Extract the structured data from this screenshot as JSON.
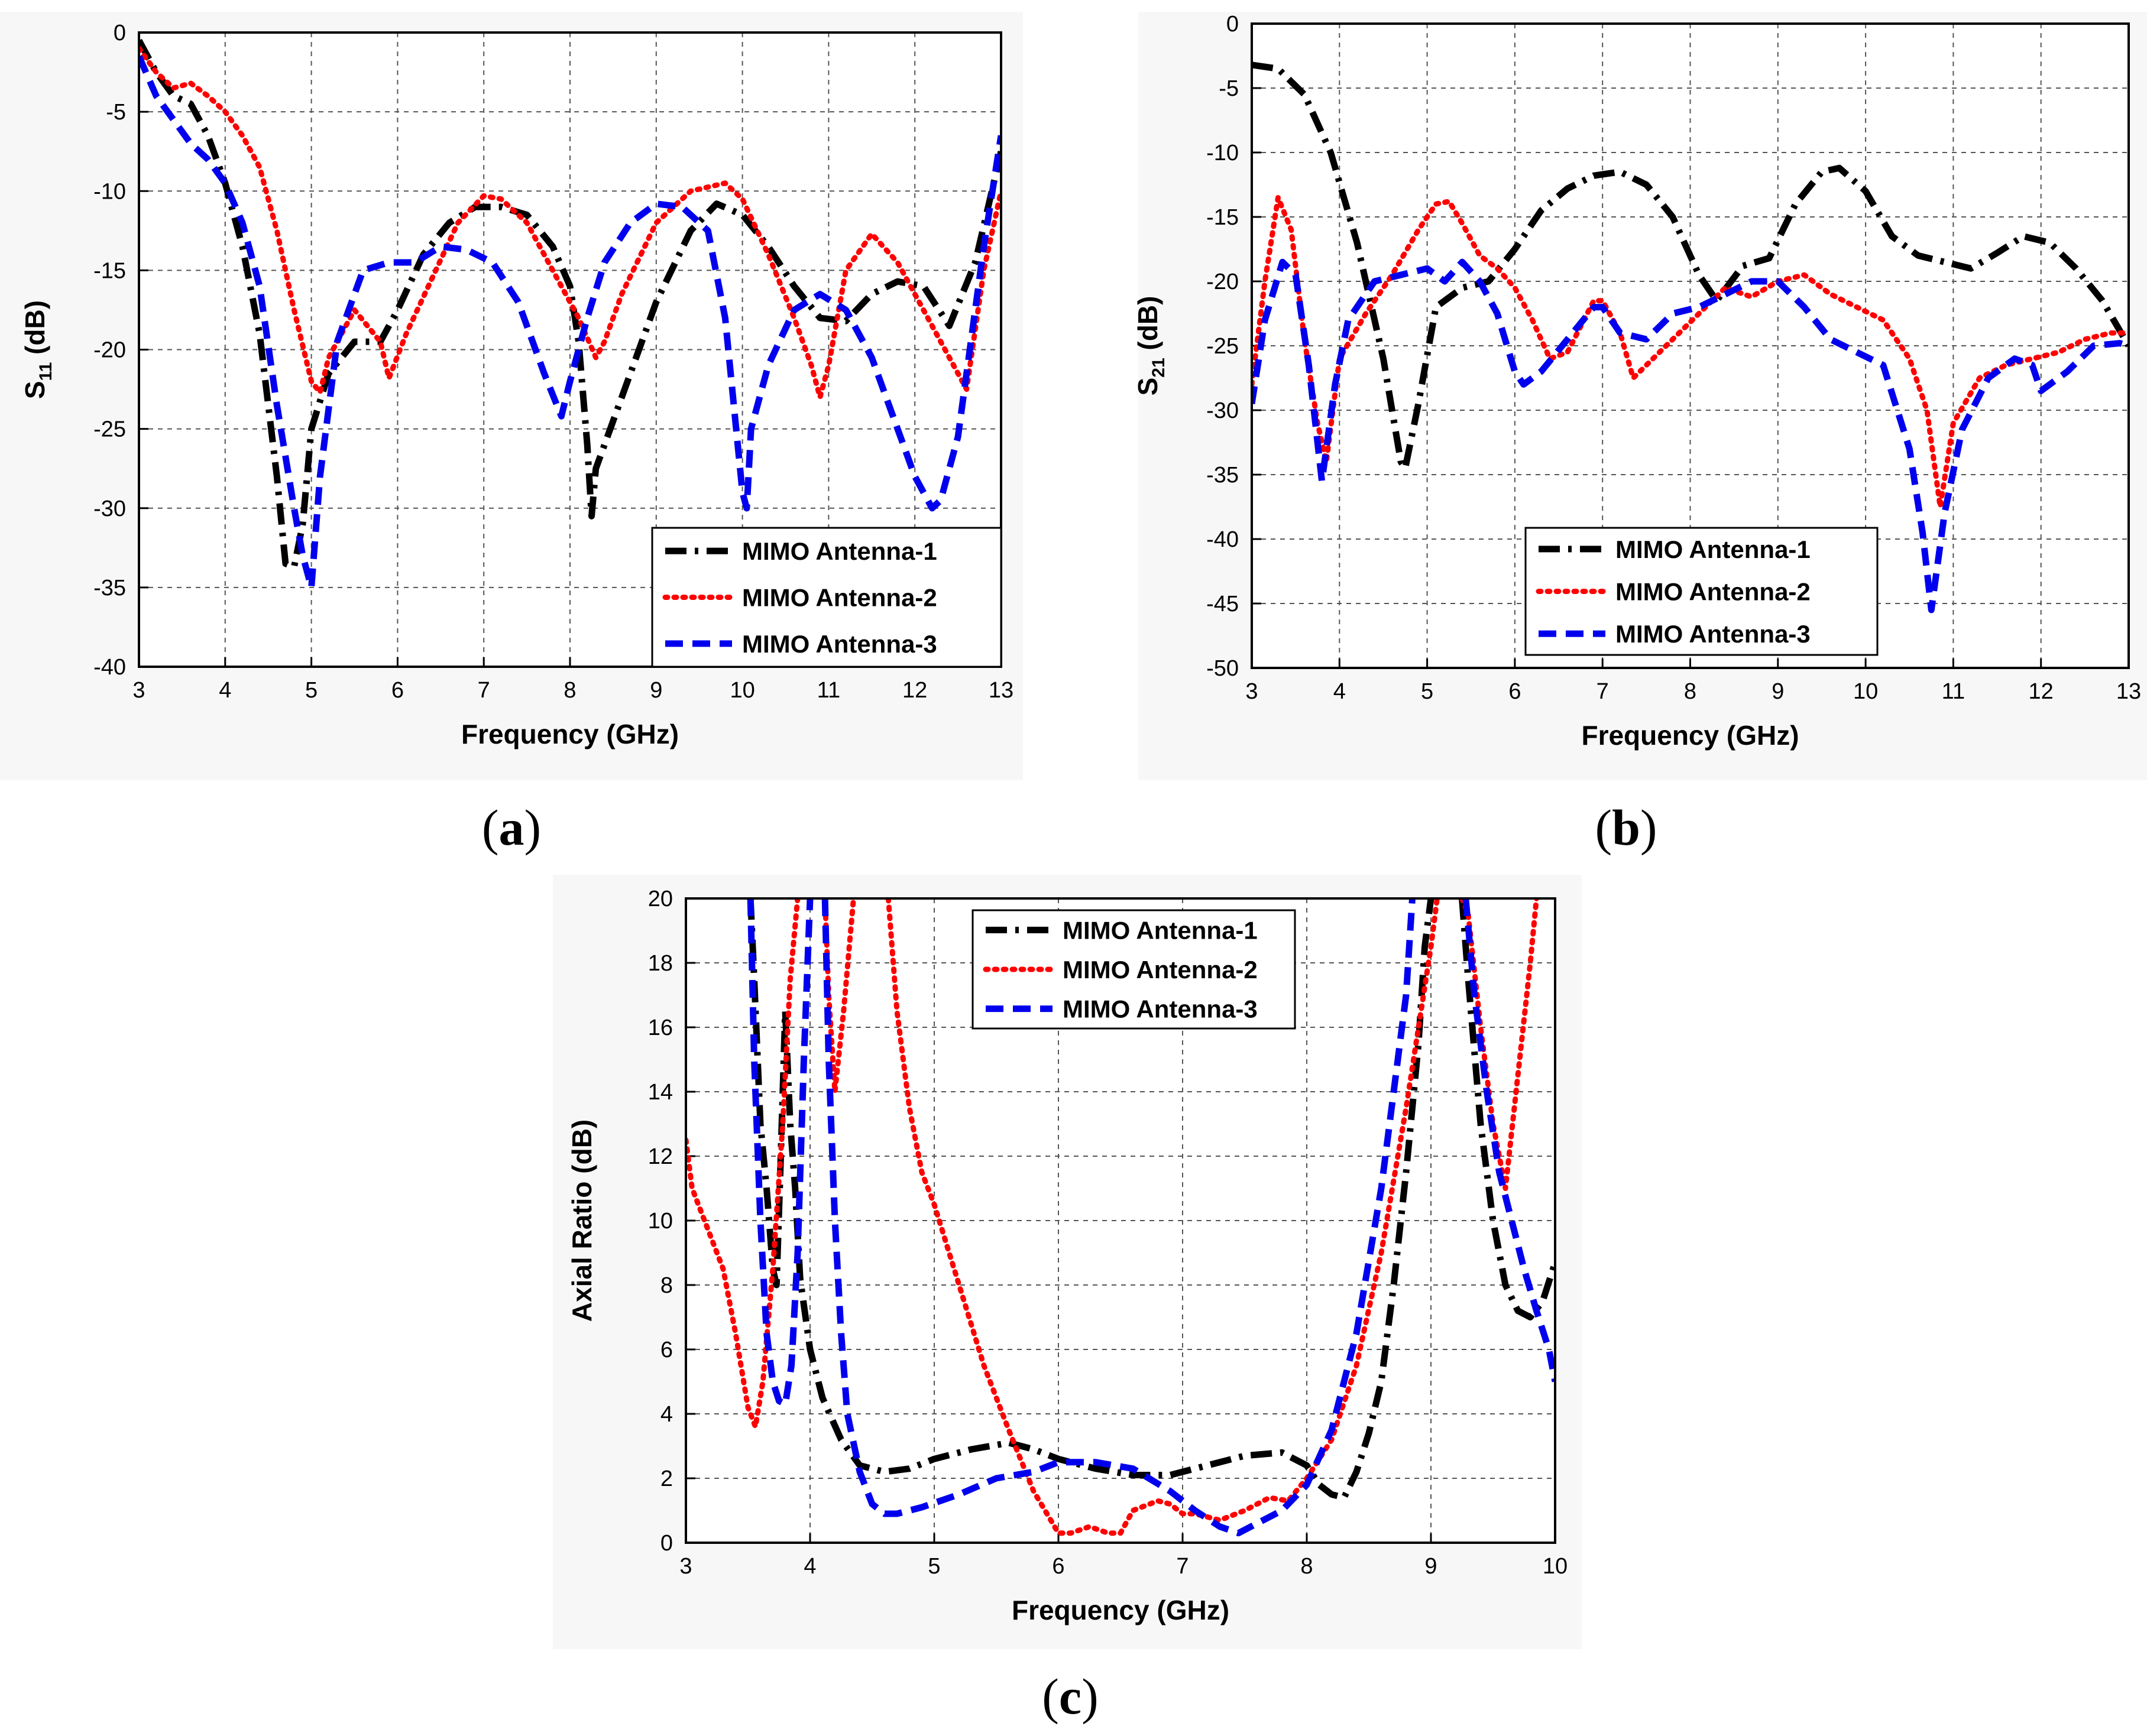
{
  "captions": {
    "a": "a",
    "b": "b",
    "c": "c"
  },
  "colors": {
    "antenna1": "#000000",
    "antenna2": "#ff0000",
    "antenna3": "#0000ee",
    "grid": "#555555"
  },
  "chart_data": [
    {
      "id": "a",
      "type": "line",
      "xlabel": "Frequency (GHz)",
      "ylabel_main": "S",
      "ylabel_sub": "11",
      "ylabel_unit": " (dB)",
      "xlim": [
        3,
        13
      ],
      "ylim": [
        -40,
        0
      ],
      "xticks": [
        3,
        4,
        5,
        6,
        7,
        8,
        9,
        10,
        11,
        12,
        13
      ],
      "yticks": [
        0,
        -5,
        -10,
        -15,
        -20,
        -25,
        -30,
        -35,
        -40
      ],
      "legend_position": "bottom-right",
      "series": [
        {
          "name": "MIMO Antenna-1",
          "style": "dashdot",
          "x": [
            3,
            3.2,
            3.4,
            3.6,
            3.8,
            4.0,
            4.2,
            4.4,
            4.6,
            4.7,
            4.8,
            4.9,
            5.0,
            5.2,
            5.5,
            5.8,
            6.0,
            6.3,
            6.6,
            6.9,
            7.2,
            7.5,
            7.8,
            8.0,
            8.1,
            8.2,
            8.25,
            8.3,
            8.6,
            9.0,
            9.4,
            9.7,
            10.0,
            10.3,
            10.6,
            10.9,
            11.2,
            11.5,
            11.8,
            12.1,
            12.4,
            12.7,
            13.0
          ],
          "y": [
            -0.5,
            -2.5,
            -4.0,
            -4.5,
            -6.5,
            -9.5,
            -13.5,
            -19,
            -28,
            -33.5,
            -33.7,
            -31,
            -25,
            -21.5,
            -19.5,
            -19.5,
            -17.5,
            -14,
            -12,
            -11,
            -11,
            -11.5,
            -13.5,
            -16,
            -19.5,
            -26,
            -30.5,
            -27.5,
            -23,
            -17,
            -12.5,
            -10.8,
            -11.5,
            -13.5,
            -16,
            -18,
            -18.2,
            -16.5,
            -15.7,
            -16,
            -18.5,
            -14.5,
            -7.5
          ]
        },
        {
          "name": "MIMO Antenna-2",
          "style": "dotted",
          "x": [
            3,
            3.2,
            3.4,
            3.6,
            3.8,
            4.0,
            4.2,
            4.4,
            4.6,
            4.8,
            5.0,
            5.1,
            5.2,
            5.5,
            5.8,
            5.9,
            6.1,
            6.4,
            6.7,
            7.0,
            7.2,
            7.5,
            7.8,
            8.1,
            8.3,
            8.4,
            8.6,
            9.0,
            9.4,
            9.8,
            10.0,
            10.3,
            10.6,
            10.8,
            10.9,
            11.0,
            11.2,
            11.5,
            11.8,
            12.1,
            12.4,
            12.6,
            12.8,
            13.0
          ],
          "y": [
            -1.0,
            -2.5,
            -3.5,
            -3.2,
            -4.0,
            -5.0,
            -6.5,
            -8.5,
            -12.5,
            -17.5,
            -22,
            -22.7,
            -20.5,
            -17.5,
            -19.5,
            -21.8,
            -19,
            -15.5,
            -12,
            -10.3,
            -10.5,
            -12,
            -15,
            -18,
            -20.5,
            -19.5,
            -16.5,
            -12,
            -10,
            -9.5,
            -10.5,
            -14,
            -18,
            -21,
            -23,
            -21,
            -15,
            -12.7,
            -14.5,
            -17.5,
            -20.5,
            -22.5,
            -15,
            -10
          ]
        },
        {
          "name": "MIMO Antenna-3",
          "style": "dashed",
          "x": [
            3,
            3.2,
            3.4,
            3.6,
            3.8,
            4.0,
            4.2,
            4.4,
            4.6,
            4.8,
            4.9,
            5.0,
            5.1,
            5.3,
            5.6,
            5.9,
            6.2,
            6.5,
            6.8,
            7.1,
            7.4,
            7.7,
            7.9,
            8.0,
            8.2,
            8.4,
            8.7,
            9.0,
            9.3,
            9.6,
            9.8,
            10.0,
            10.05,
            10.1,
            10.3,
            10.6,
            10.9,
            11.2,
            11.5,
            11.8,
            12.0,
            12.2,
            12.3,
            12.5,
            12.8,
            13.0
          ],
          "y": [
            -1.5,
            -4,
            -5.5,
            -7,
            -8,
            -9.5,
            -12,
            -16,
            -23.5,
            -30,
            -33,
            -35,
            -28,
            -19.5,
            -15,
            -14.5,
            -14.5,
            -13.5,
            -13.7,
            -14.5,
            -17,
            -21.5,
            -24.2,
            -22,
            -18,
            -14.5,
            -12,
            -10.8,
            -11,
            -12.5,
            -18,
            -29,
            -30,
            -25,
            -21,
            -17.5,
            -16.5,
            -17.5,
            -20.5,
            -25,
            -28,
            -30,
            -29.5,
            -25.5,
            -13.5,
            -6.5
          ]
        }
      ]
    },
    {
      "id": "b",
      "type": "line",
      "xlabel": "Frequency (GHz)",
      "ylabel_main": "S",
      "ylabel_sub": "21",
      "ylabel_unit": " (dB)",
      "xlim": [
        3,
        13
      ],
      "ylim": [
        -50,
        0
      ],
      "xticks": [
        3,
        4,
        5,
        6,
        7,
        8,
        9,
        10,
        11,
        12,
        13
      ],
      "yticks": [
        0,
        -5,
        -10,
        -15,
        -20,
        -25,
        -30,
        -35,
        -40,
        -45,
        -50
      ],
      "legend_position": "bottom-right",
      "series": [
        {
          "name": "MIMO Antenna-1",
          "style": "dashdot",
          "x": [
            3,
            3.3,
            3.6,
            3.9,
            4.2,
            4.5,
            4.7,
            4.75,
            4.9,
            5.1,
            5.4,
            5.7,
            6.0,
            6.3,
            6.6,
            6.9,
            7.2,
            7.5,
            7.8,
            8.1,
            8.3,
            8.6,
            8.9,
            9.2,
            9.5,
            9.7,
            10.0,
            10.3,
            10.6,
            10.9,
            11.2,
            11.5,
            11.8,
            12.1,
            12.4,
            12.7,
            13.0
          ],
          "y": [
            -3.2,
            -3.5,
            -5.5,
            -10,
            -17,
            -26,
            -34,
            -34.5,
            -29.5,
            -22,
            -20.5,
            -20,
            -17.5,
            -14.5,
            -12.8,
            -11.8,
            -11.5,
            -12.5,
            -15,
            -19.5,
            -21.5,
            -18.8,
            -18.2,
            -14,
            -11.5,
            -11.2,
            -13,
            -16.5,
            -18,
            -18.5,
            -19,
            -17.8,
            -16.5,
            -17,
            -19,
            -21.5,
            -25
          ]
        },
        {
          "name": "MIMO Antenna-2",
          "style": "dotted",
          "x": [
            3,
            3.15,
            3.3,
            3.45,
            3.6,
            3.75,
            3.85,
            4.0,
            4.3,
            4.6,
            4.9,
            5.1,
            5.25,
            5.4,
            5.6,
            5.8,
            6.0,
            6.2,
            6.4,
            6.6,
            6.9,
            7.0,
            7.2,
            7.35,
            7.5,
            7.8,
            8.1,
            8.4,
            8.7,
            9.0,
            9.3,
            9.6,
            9.9,
            10.2,
            10.5,
            10.7,
            10.85,
            11.0,
            11.3,
            11.6,
            11.9,
            12.2,
            12.5,
            12.8,
            13.0
          ],
          "y": [
            -28,
            -20,
            -13.5,
            -16,
            -24.5,
            -31,
            -34,
            -26,
            -22.5,
            -19.5,
            -16,
            -14,
            -13.8,
            -15.5,
            -18,
            -19,
            -20.5,
            -23,
            -26,
            -25.5,
            -21.5,
            -21.5,
            -24,
            -27.5,
            -26.5,
            -24.5,
            -22.5,
            -20.5,
            -21.2,
            -20,
            -19.5,
            -21,
            -22,
            -23,
            -26,
            -30,
            -37.5,
            -31,
            -27.5,
            -26.5,
            -26,
            -25.5,
            -24.5,
            -24,
            -24
          ]
        },
        {
          "name": "MIMO Antenna-3",
          "style": "dashed",
          "x": [
            3,
            3.15,
            3.35,
            3.5,
            3.65,
            3.8,
            3.95,
            4.1,
            4.4,
            4.7,
            5.0,
            5.2,
            5.4,
            5.6,
            5.8,
            6.0,
            6.1,
            6.3,
            6.6,
            6.9,
            7.0,
            7.2,
            7.5,
            7.8,
            8.1,
            8.4,
            8.7,
            9.0,
            9.3,
            9.6,
            9.9,
            10.2,
            10.5,
            10.65,
            10.75,
            10.9,
            11.1,
            11.4,
            11.7,
            11.9,
            12.0,
            12.3,
            12.6,
            12.9,
            13.0
          ],
          "y": [
            -29.5,
            -23,
            -18.5,
            -19.5,
            -26.5,
            -35.5,
            -28,
            -23,
            -20,
            -19.5,
            -19,
            -20,
            -18.5,
            -20,
            -22.5,
            -27,
            -28,
            -27,
            -24.5,
            -22,
            -22,
            -24,
            -24.5,
            -22.5,
            -22,
            -21,
            -20,
            -20,
            -22,
            -24.5,
            -25.5,
            -26.5,
            -33,
            -39.5,
            -45.5,
            -38,
            -31.5,
            -27.5,
            -26,
            -26.5,
            -28.5,
            -27,
            -25,
            -24.8,
            -25
          ]
        }
      ]
    },
    {
      "id": "c",
      "type": "line",
      "xlabel": "Frequency (GHz)",
      "ylabel": "Axial Ratio (dB)",
      "xlim": [
        3,
        10
      ],
      "ylim": [
        0,
        20
      ],
      "xticks": [
        3,
        4,
        5,
        6,
        7,
        8,
        9,
        10
      ],
      "yticks": [
        0,
        2,
        4,
        6,
        8,
        10,
        12,
        14,
        16,
        18,
        20
      ],
      "legend_position": "top-center",
      "series": [
        {
          "name": "MIMO Antenna-1",
          "style": "dashdot",
          "segments": [
            {
              "x": [
                3.52,
                3.55,
                3.6,
                3.65,
                3.7,
                3.73,
                3.76,
                3.8,
                3.84,
                3.88,
                3.92,
                4.0,
                4.1,
                4.25,
                4.4,
                4.6,
                4.8,
                5.0,
                5.3,
                5.6,
                5.8,
                6.0,
                6.3,
                6.6,
                6.9,
                7.2,
                7.5,
                7.8,
                8.0,
                8.1,
                8.2,
                8.3,
                8.4,
                8.5,
                8.6,
                8.7,
                8.8,
                8.9,
                8.95,
                9.0
              ],
              "y": [
                20,
                17.5,
                13,
                11,
                8.5,
                8.0,
                11.5,
                16.5,
                13,
                11,
                8.2,
                6.0,
                4.5,
                3.2,
                2.4,
                2.2,
                2.3,
                2.6,
                2.9,
                3.1,
                2.9,
                2.6,
                2.3,
                2.1,
                2.1,
                2.4,
                2.7,
                2.8,
                2.4,
                1.8,
                1.5,
                1.4,
                2.2,
                3.4,
                5.0,
                8.0,
                11.5,
                15.5,
                18.5,
                20
              ]
            },
            {
              "x": [
                9.25,
                9.3,
                9.4,
                9.5,
                9.6,
                9.7,
                9.8,
                9.9,
                10.0
              ],
              "y": [
                20,
                17.5,
                13,
                10,
                8,
                7.2,
                7.0,
                7.5,
                8.7
              ]
            }
          ]
        },
        {
          "name": "MIMO Antenna-2",
          "style": "dotted",
          "segments": [
            {
              "x": [
                3.0,
                3.05,
                3.15,
                3.3,
                3.4,
                3.5,
                3.56,
                3.62,
                3.7,
                3.78,
                3.84,
                3.9
              ],
              "y": [
                12.5,
                11,
                10,
                8.5,
                6.5,
                4.2,
                3.6,
                5,
                8.5,
                13,
                17.5,
                20
              ]
            },
            {
              "x": [
                4.12,
                4.15,
                4.2,
                4.27,
                4.35
              ],
              "y": [
                20,
                17,
                14,
                16.5,
                20
              ]
            },
            {
              "x": [
                4.63,
                4.7,
                4.8,
                4.9,
                5.0,
                5.2,
                5.4,
                5.6,
                5.8,
                6.0,
                6.1,
                6.25,
                6.4,
                6.5,
                6.6,
                6.8,
                6.9,
                7.0,
                7.1,
                7.3,
                7.5,
                7.7,
                7.85,
                8.0,
                8.2,
                8.4,
                8.6,
                8.8,
                9.0,
                9.05
              ],
              "y": [
                20,
                16.5,
                13.5,
                11.5,
                10.5,
                8.0,
                5.5,
                3.5,
                1.6,
                0.3,
                0.3,
                0.5,
                0.3,
                0.3,
                1.0,
                1.3,
                1.2,
                0.9,
                0.9,
                0.7,
                1.0,
                1.4,
                1.3,
                2.0,
                3.2,
                5.5,
                9.0,
                13.5,
                18.5,
                20
              ]
            },
            {
              "x": [
                9.25,
                9.3,
                9.4,
                9.5,
                9.6,
                9.7,
                9.8,
                9.85
              ],
              "y": [
                20,
                19.5,
                16,
                13,
                11,
                14.5,
                18,
                20
              ]
            }
          ]
        },
        {
          "name": "MIMO Antenna-3",
          "style": "dashed",
          "segments": [
            {
              "x": [
                3.52,
                3.55,
                3.6,
                3.65,
                3.7,
                3.75,
                3.8,
                3.85,
                3.9,
                3.95,
                4.0
              ],
              "y": [
                20,
                15,
                10,
                6.5,
                5.0,
                4.4,
                4.3,
                5.5,
                9,
                15,
                20
              ]
            },
            {
              "x": [
                4.12,
                4.15,
                4.2,
                4.25,
                4.3,
                4.4,
                4.5,
                4.6,
                4.7,
                4.9,
                5.2,
                5.5,
                5.8,
                6.0,
                6.3,
                6.6,
                6.9,
                7.1,
                7.3,
                7.45,
                7.6,
                7.8,
                8.0,
                8.2,
                8.4,
                8.6,
                8.8,
                8.85
              ],
              "y": [
                20,
                15,
                10,
                6.5,
                4.0,
                2.2,
                1.2,
                0.9,
                0.9,
                1.1,
                1.5,
                2.0,
                2.2,
                2.5,
                2.5,
                2.3,
                1.6,
                1.0,
                0.5,
                0.3,
                0.6,
                1.0,
                1.8,
                3.5,
                6.5,
                11,
                17,
                20
              ]
            },
            {
              "x": [
                9.28,
                9.35,
                9.45,
                9.55,
                9.65,
                9.75,
                9.85,
                9.95,
                10.0
              ],
              "y": [
                20,
                17,
                14,
                11.5,
                10,
                8.5,
                7.2,
                6.0,
                5.0
              ]
            }
          ]
        }
      ]
    }
  ]
}
